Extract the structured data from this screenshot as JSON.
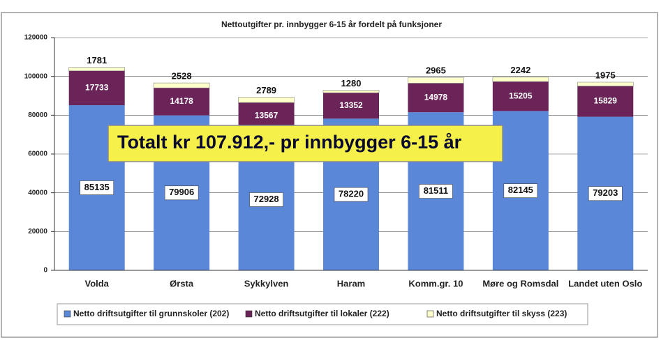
{
  "chart_data": {
    "type": "stacked_bar",
    "title": "Nettoutgifter pr. innbygger 6-15 år fordelt på funksjoner",
    "annotation": "Totalt kr 107.912,- pr innbygger 6-15 år",
    "categories": [
      "Volda",
      "Ørsta",
      "Sykkylven",
      "Haram",
      "Komm.gr. 10",
      "Møre og Romsdal",
      "Landet uten Oslo"
    ],
    "series": [
      {
        "name": "Netto driftsutgifter til grunnskoler (202)",
        "color": "#5b87d8",
        "values": [
          85135,
          79906,
          72928,
          78220,
          81511,
          82145,
          79203
        ]
      },
      {
        "name": "Netto driftsutgifter til lokaler (222)",
        "color": "#6a2458",
        "values": [
          17733,
          14178,
          13567,
          13352,
          14978,
          15205,
          15829
        ]
      },
      {
        "name": "Netto driftsutgifter til skyss (223)",
        "color": "#ffffcc",
        "values": [
          1781,
          2528,
          2789,
          1280,
          2965,
          2242,
          1975
        ]
      }
    ],
    "ylim": [
      0,
      120000
    ],
    "yticks": [
      0,
      20000,
      40000,
      60000,
      80000,
      100000,
      120000
    ],
    "grid": true,
    "legend": "bottom"
  }
}
